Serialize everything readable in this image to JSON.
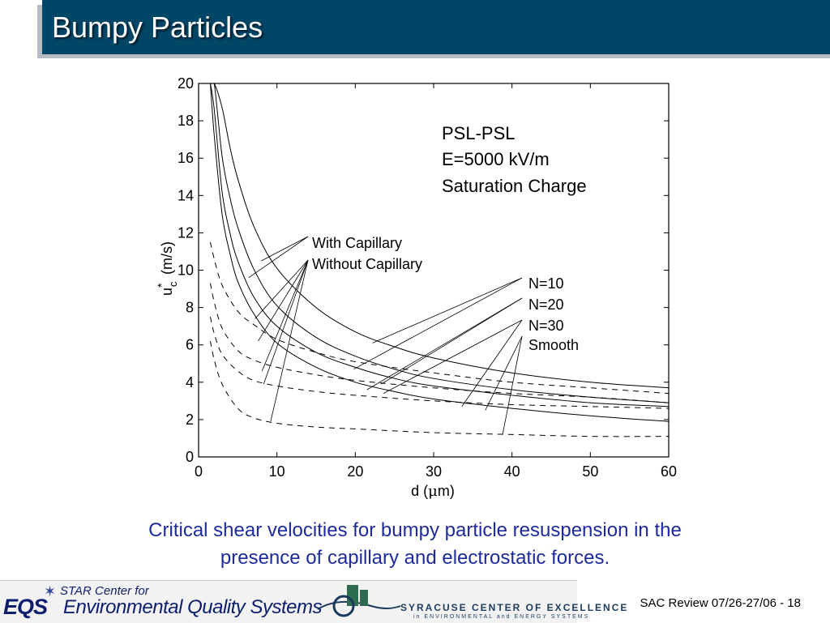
{
  "slide": {
    "title": "Bumpy Particles",
    "caption_line1": "Critical shear velocities for bumpy particle resuspension in the",
    "caption_line2": "presence of capillary and electrostatic forces.",
    "footer_text": "SAC Review 07/26-27/06 - 18"
  },
  "logos": {
    "star_text": "STAR Center for",
    "eqs_letters": "EQS",
    "eqs_name": "Environmental Quality Systems",
    "syracuse_title": "SYRACUSE CENTER OF EXCELLENCE",
    "syracuse_sub": "in ENVIRONMENTAL and ENERGY SYSTEMS"
  },
  "colors": {
    "title_bar": "#004666",
    "caption": "#1e2aa0",
    "curves": "#000000"
  },
  "chart_data": {
    "type": "line",
    "xlabel_main": "d (",
    "xlabel_mu": "μ",
    "xlabel_rest": "m)",
    "ylabel_u": "u",
    "ylabel_sub": "c",
    "ylabel_sup": "*",
    "ylabel_rest": "(m/s)",
    "xlim": [
      0,
      60
    ],
    "ylim": [
      0,
      20
    ],
    "xticks": [
      0,
      10,
      20,
      30,
      40,
      50,
      60
    ],
    "yticks": [
      0,
      2,
      4,
      6,
      8,
      10,
      12,
      14,
      16,
      18,
      20
    ],
    "grid": false,
    "annotation_lines": [
      "PSL-PSL",
      "E=5000 kV/m",
      "Saturation Charge"
    ],
    "labels": {
      "with_capillary": "With Capillary",
      "without_capillary": "Without Capillary",
      "n10": "N=10",
      "n20": "N=20",
      "n30": "N=30",
      "smooth": "Smooth"
    },
    "series": [
      {
        "group": "with_capillary",
        "case": "n10",
        "style": "solid",
        "x": [
          1.5,
          2,
          3,
          4,
          5,
          7,
          10,
          15,
          20,
          25,
          30,
          40,
          50,
          60
        ],
        "y": [
          20,
          20,
          18.7,
          16.6,
          14.9,
          12.4,
          10.1,
          8.0,
          6.7,
          5.9,
          5.3,
          4.5,
          4.0,
          3.7
        ]
      },
      {
        "group": "with_capillary",
        "case": "n20",
        "style": "solid",
        "x": [
          1.5,
          2,
          3,
          4,
          5,
          7,
          10,
          15,
          20,
          25,
          30,
          40,
          50,
          60
        ],
        "y": [
          20,
          20,
          16.1,
          13.9,
          12.3,
          10.1,
          8.1,
          6.4,
          5.4,
          4.7,
          4.2,
          3.6,
          3.2,
          2.9
        ]
      },
      {
        "group": "with_capillary",
        "case": "n30",
        "style": "solid",
        "x": [
          1.5,
          2,
          3,
          4,
          5,
          7,
          10,
          15,
          20,
          25,
          30,
          40,
          50,
          60
        ],
        "y": [
          20,
          18.6,
          14.2,
          12.0,
          10.5,
          8.6,
          7.0,
          5.6,
          4.8,
          4.2,
          3.8,
          3.3,
          2.9,
          2.7
        ]
      },
      {
        "group": "with_capillary",
        "case": "smooth",
        "style": "solid",
        "x": [
          1.5,
          2,
          3,
          4,
          5,
          7,
          10,
          15,
          20,
          25,
          30,
          40,
          50,
          60
        ],
        "y": [
          20,
          17.2,
          13.0,
          10.9,
          9.4,
          7.7,
          6.1,
          4.8,
          4.0,
          3.5,
          3.1,
          2.6,
          2.2,
          1.9
        ]
      },
      {
        "group": "without_capillary",
        "case": "n10",
        "style": "dashed",
        "x": [
          1.5,
          2,
          3,
          5,
          7,
          10,
          15,
          20,
          30,
          40,
          50,
          60
        ],
        "y": [
          11.5,
          10.6,
          9.2,
          7.8,
          7.1,
          6.3,
          5.6,
          5.1,
          4.5,
          4.0,
          3.7,
          3.4
        ]
      },
      {
        "group": "without_capillary",
        "case": "n20",
        "style": "dashed",
        "x": [
          1.5,
          2,
          3,
          5,
          7,
          10,
          15,
          20,
          30,
          40,
          50,
          60
        ],
        "y": [
          9.3,
          8.3,
          6.9,
          5.7,
          5.2,
          4.8,
          4.4,
          4.1,
          3.7,
          3.4,
          3.2,
          2.9
        ]
      },
      {
        "group": "without_capillary",
        "case": "n30",
        "style": "dashed",
        "x": [
          1.5,
          2,
          3,
          5,
          7,
          10,
          15,
          20,
          30,
          40,
          50,
          60
        ],
        "y": [
          7.5,
          6.6,
          5.5,
          4.6,
          4.1,
          3.8,
          3.5,
          3.3,
          3.0,
          2.8,
          2.7,
          2.6
        ]
      },
      {
        "group": "without_capillary",
        "case": "smooth",
        "style": "dashed",
        "x": [
          1.5,
          2,
          3,
          5,
          7,
          10,
          15,
          20,
          30,
          40,
          50,
          60
        ],
        "y": [
          6.2,
          5.2,
          3.9,
          2.6,
          2.1,
          1.8,
          1.6,
          1.5,
          1.3,
          1.2,
          1.1,
          1.1
        ]
      }
    ]
  }
}
